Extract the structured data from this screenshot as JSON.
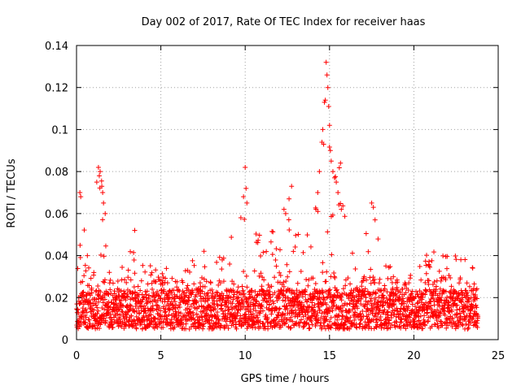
{
  "chart_data": {
    "type": "scatter",
    "title": "Day 002 of 2017, Rate Of TEC Index for receiver haas",
    "xlabel": "GPS time / hours",
    "ylabel": "ROTI / TECUs",
    "xlim": [
      0,
      25
    ],
    "ylim": [
      0,
      0.14
    ],
    "x_ticks": [
      0,
      5,
      10,
      15,
      20,
      25
    ],
    "x_tick_labels": [
      "0",
      "5",
      "10",
      "15",
      "20",
      "25"
    ],
    "y_ticks": [
      0,
      0.02,
      0.04,
      0.06,
      0.08,
      0.1,
      0.12,
      0.14
    ],
    "y_tick_labels": [
      "0",
      "0.02",
      "0.04",
      "0.06",
      "0.08",
      "0.1",
      "0.12",
      "0.14"
    ],
    "grid": true,
    "marker": "+",
    "marker_color": "#ff0000",
    "data_time_range_hours": [
      0,
      23.8
    ],
    "series": [
      {
        "name": "ROTI",
        "description": "dense band of samples mostly 0.005-0.03 TECU/min, with spikes",
        "baseline_range": [
          0.005,
          0.03
        ],
        "envelope": [
          {
            "x": 0.0,
            "upper": 0.03
          },
          {
            "x": 0.3,
            "upper": 0.071
          },
          {
            "x": 0.6,
            "upper": 0.04
          },
          {
            "x": 1.0,
            "upper": 0.045
          },
          {
            "x": 1.3,
            "upper": 0.083
          },
          {
            "x": 1.6,
            "upper": 0.074
          },
          {
            "x": 2.0,
            "upper": 0.036
          },
          {
            "x": 3.0,
            "upper": 0.035
          },
          {
            "x": 3.4,
            "upper": 0.052
          },
          {
            "x": 4.0,
            "upper": 0.037
          },
          {
            "x": 5.0,
            "upper": 0.033
          },
          {
            "x": 6.0,
            "upper": 0.04
          },
          {
            "x": 6.5,
            "upper": 0.046
          },
          {
            "x": 7.5,
            "upper": 0.042
          },
          {
            "x": 8.5,
            "upper": 0.046
          },
          {
            "x": 9.5,
            "upper": 0.055
          },
          {
            "x": 10.0,
            "upper": 0.082
          },
          {
            "x": 10.5,
            "upper": 0.052
          },
          {
            "x": 11.0,
            "upper": 0.056
          },
          {
            "x": 12.0,
            "upper": 0.049
          },
          {
            "x": 12.4,
            "upper": 0.062
          },
          {
            "x": 12.7,
            "upper": 0.073
          },
          {
            "x": 13.5,
            "upper": 0.044
          },
          {
            "x": 14.0,
            "upper": 0.06
          },
          {
            "x": 14.5,
            "upper": 0.101
          },
          {
            "x": 14.8,
            "upper": 0.132
          },
          {
            "x": 15.2,
            "upper": 0.086
          },
          {
            "x": 15.6,
            "upper": 0.084
          },
          {
            "x": 16.5,
            "upper": 0.038
          },
          {
            "x": 17.5,
            "upper": 0.065
          },
          {
            "x": 18.5,
            "upper": 0.036
          },
          {
            "x": 19.5,
            "upper": 0.04
          },
          {
            "x": 20.5,
            "upper": 0.04
          },
          {
            "x": 21.5,
            "upper": 0.045
          },
          {
            "x": 22.5,
            "upper": 0.04
          },
          {
            "x": 23.3,
            "upper": 0.042
          },
          {
            "x": 23.8,
            "upper": 0.027
          }
        ],
        "spike_points": [
          [
            0.2,
            0.07
          ],
          [
            0.25,
            0.068
          ],
          [
            1.2,
            0.075
          ],
          [
            1.3,
            0.082
          ],
          [
            1.35,
            0.078
          ],
          [
            1.4,
            0.08
          ],
          [
            1.5,
            0.073
          ],
          [
            1.55,
            0.07
          ],
          [
            1.6,
            0.065
          ],
          [
            1.7,
            0.06
          ],
          [
            3.45,
            0.052
          ],
          [
            9.9,
            0.068
          ],
          [
            10.0,
            0.082
          ],
          [
            10.05,
            0.072
          ],
          [
            10.1,
            0.065
          ],
          [
            12.3,
            0.062
          ],
          [
            12.4,
            0.06
          ],
          [
            12.6,
            0.067
          ],
          [
            12.75,
            0.073
          ],
          [
            14.2,
            0.062
          ],
          [
            14.3,
            0.07
          ],
          [
            14.4,
            0.08
          ],
          [
            14.55,
            0.094
          ],
          [
            14.6,
            0.1
          ],
          [
            14.65,
            0.093
          ],
          [
            14.7,
            0.113
          ],
          [
            14.75,
            0.114
          ],
          [
            14.8,
            0.132
          ],
          [
            14.85,
            0.126
          ],
          [
            14.9,
            0.12
          ],
          [
            14.95,
            0.111
          ],
          [
            15.0,
            0.102
          ],
          [
            15.05,
            0.09
          ],
          [
            15.1,
            0.085
          ],
          [
            15.2,
            0.08
          ],
          [
            15.3,
            0.077
          ],
          [
            15.4,
            0.075
          ],
          [
            15.5,
            0.07
          ],
          [
            15.65,
            0.084
          ],
          [
            15.7,
            0.062
          ],
          [
            17.5,
            0.065
          ],
          [
            17.6,
            0.063
          ],
          [
            17.7,
            0.057
          ]
        ]
      }
    ]
  }
}
